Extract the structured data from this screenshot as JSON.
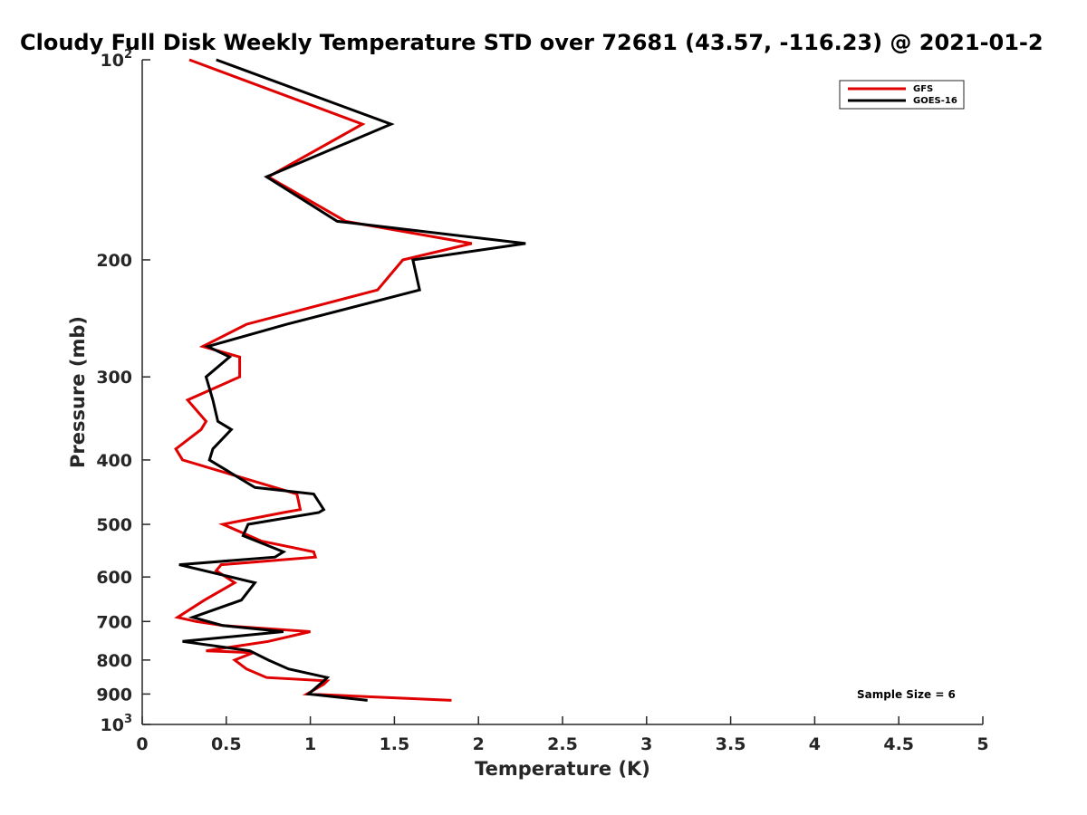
{
  "chart_data": {
    "type": "line",
    "title": "Cloudy Full Disk Weekly Temperature STD over 72681 (43.57, -116.23) @ 2021-01-2",
    "xlabel": "Temperature (K)",
    "ylabel": "Pressure (mb)",
    "xlim": [
      0,
      5
    ],
    "ylim": [
      1000,
      100
    ],
    "yscale": "log",
    "x_ticks": [
      "0",
      "0.5",
      "1",
      "1.5",
      "2",
      "2.5",
      "3",
      "3.5",
      "4",
      "4.5",
      "5"
    ],
    "y_ticks": [
      {
        "value": 100,
        "label": "10",
        "exp": "2"
      },
      {
        "value": 200,
        "label": "200"
      },
      {
        "value": 300,
        "label": "300"
      },
      {
        "value": 400,
        "label": "400"
      },
      {
        "value": 500,
        "label": "500"
      },
      {
        "value": 600,
        "label": "600"
      },
      {
        "value": 700,
        "label": "700"
      },
      {
        "value": 800,
        "label": "800"
      },
      {
        "value": 900,
        "label": "900"
      },
      {
        "value": 1000,
        "label": "10",
        "exp": "3"
      }
    ],
    "legend_position": "top-right",
    "grid": false,
    "annotation": "Sample Size = 6",
    "series": [
      {
        "name": "GFS",
        "color": "#e00000",
        "points": [
          [
            0.28,
            100
          ],
          [
            1.31,
            125
          ],
          [
            0.75,
            150
          ],
          [
            1.21,
            175
          ],
          [
            1.96,
            189
          ],
          [
            1.55,
            200
          ],
          [
            1.4,
            222
          ],
          [
            0.62,
            250
          ],
          [
            0.36,
            270
          ],
          [
            0.58,
            280
          ],
          [
            0.58,
            300
          ],
          [
            0.27,
            325
          ],
          [
            0.38,
            350
          ],
          [
            0.35,
            360
          ],
          [
            0.2,
            385
          ],
          [
            0.24,
            400
          ],
          [
            0.92,
            450
          ],
          [
            0.94,
            475
          ],
          [
            0.84,
            480
          ],
          [
            0.48,
            500
          ],
          [
            0.71,
            530
          ],
          [
            1.02,
            550
          ],
          [
            1.03,
            560
          ],
          [
            0.47,
            575
          ],
          [
            0.44,
            587
          ],
          [
            0.55,
            612
          ],
          [
            0.37,
            650
          ],
          [
            0.21,
            690
          ],
          [
            0.32,
            700
          ],
          [
            0.48,
            710
          ],
          [
            1.0,
            725
          ],
          [
            0.75,
            750
          ],
          [
            0.38,
            775
          ],
          [
            0.66,
            780
          ],
          [
            0.55,
            800
          ],
          [
            0.62,
            825
          ],
          [
            0.74,
            850
          ],
          [
            1.1,
            860
          ],
          [
            1.08,
            870
          ],
          [
            0.98,
            900
          ],
          [
            1.84,
            920
          ]
        ]
      },
      {
        "name": "GOES-16",
        "color": "#000000",
        "points": [
          [
            0.44,
            100
          ],
          [
            1.48,
            125
          ],
          [
            0.74,
            150
          ],
          [
            1.16,
            175
          ],
          [
            2.28,
            189
          ],
          [
            1.61,
            200
          ],
          [
            1.65,
            222
          ],
          [
            0.86,
            250
          ],
          [
            0.39,
            270
          ],
          [
            0.52,
            280
          ],
          [
            0.38,
            300
          ],
          [
            0.42,
            325
          ],
          [
            0.45,
            350
          ],
          [
            0.53,
            360
          ],
          [
            0.42,
            385
          ],
          [
            0.4,
            400
          ],
          [
            0.67,
            440
          ],
          [
            1.02,
            450
          ],
          [
            1.08,
            475
          ],
          [
            1.05,
            480
          ],
          [
            0.63,
            500
          ],
          [
            0.6,
            520
          ],
          [
            0.84,
            550
          ],
          [
            0.79,
            560
          ],
          [
            0.22,
            575
          ],
          [
            0.67,
            612
          ],
          [
            0.59,
            650
          ],
          [
            0.3,
            690
          ],
          [
            0.48,
            710
          ],
          [
            0.84,
            725
          ],
          [
            0.24,
            750
          ],
          [
            0.64,
            775
          ],
          [
            0.75,
            800
          ],
          [
            0.87,
            825
          ],
          [
            1.1,
            850
          ],
          [
            1.08,
            860
          ],
          [
            0.99,
            900
          ],
          [
            1.34,
            920
          ]
        ]
      }
    ]
  }
}
